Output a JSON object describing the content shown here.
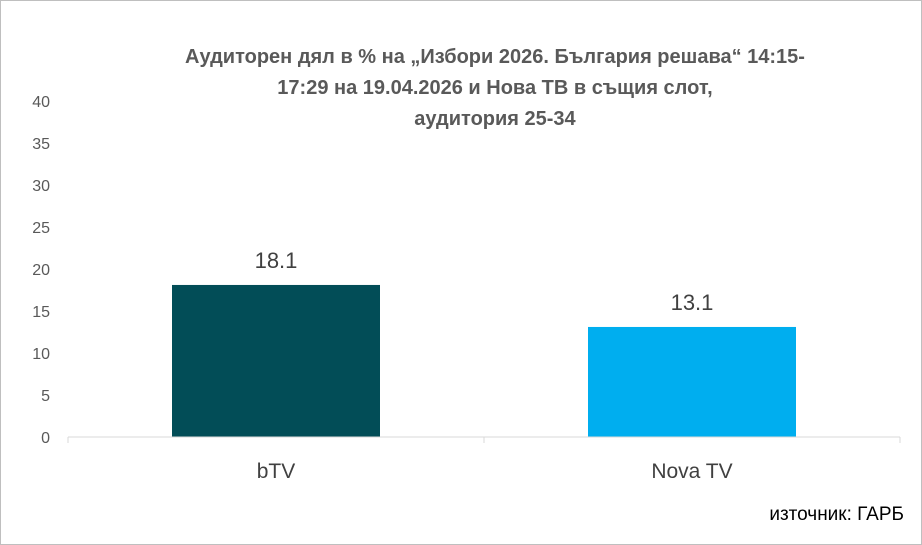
{
  "chart_data": {
    "type": "bar",
    "title_lines": [
      "Аудиторен дял в % на „Избори 2026. България решава“ 14:15-",
      "17:29 на 19.04.2026 и Нова ТВ в същия слот,",
      "аудитория 25-34"
    ],
    "categories": [
      "bTV",
      "Nova TV"
    ],
    "values": [
      18.1,
      13.1
    ],
    "data_labels": [
      "18.1",
      "13.1"
    ],
    "bar_colors": [
      "#024D57",
      "#00AEEF"
    ],
    "ylim": [
      0,
      40
    ],
    "yticks": [
      "0",
      "5",
      "10",
      "15",
      "20",
      "25",
      "30",
      "35",
      "40"
    ],
    "grid": false,
    "legend": "none"
  },
  "source": "източник: ГАРБ"
}
